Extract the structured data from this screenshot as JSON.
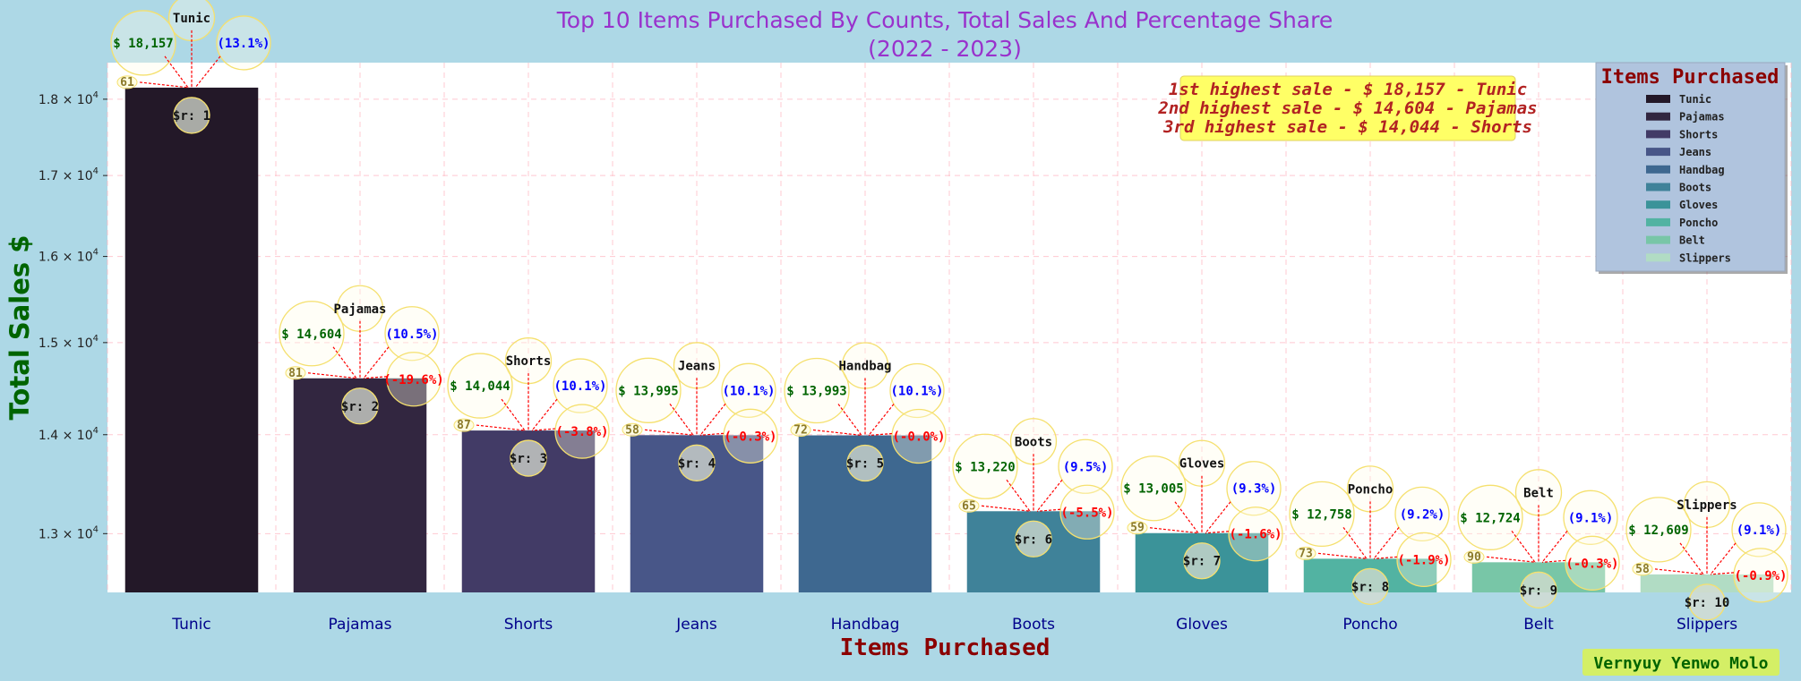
{
  "chart_data": {
    "type": "bar",
    "title_line1": "Top 10 Items Purchased By Counts, Total Sales And Percentage Share",
    "title_line2": "(2022 - 2023)",
    "xlabel": "Items Purchased",
    "ylabel": "Total Sales $",
    "y_scale": "log",
    "ylim": [
      12440,
      18500
    ],
    "yticks": [
      {
        "value": 13000,
        "base": "1.3 × 10",
        "exp": "4"
      },
      {
        "value": 14000,
        "base": "1.4 × 10",
        "exp": "4"
      },
      {
        "value": 15000,
        "base": "1.5 × 10",
        "exp": "4"
      },
      {
        "value": 16000,
        "base": "1.6 × 10",
        "exp": "4"
      },
      {
        "value": 17000,
        "base": "1.7 × 10",
        "exp": "4"
      },
      {
        "value": 18000,
        "base": "1.8 × 10",
        "exp": "4"
      }
    ],
    "grid": true,
    "legend_title": "Items Purchased",
    "legend_position": "top-right",
    "categories": [
      "Tunic",
      "Pajamas",
      "Shorts",
      "Jeans",
      "Handbag",
      "Boots",
      "Gloves",
      "Poncho",
      "Belt",
      "Slippers"
    ],
    "values": [
      18157,
      14604,
      14044,
      13995,
      13993,
      13220,
      13005,
      12758,
      12724,
      12609
    ],
    "colors": [
      "#231828",
      "#322640",
      "#423b66",
      "#485688",
      "#3e6890",
      "#3f8299",
      "#3b9399",
      "#52b3a2",
      "#78c6a7",
      "#b1dcc4"
    ],
    "labels": [
      {
        "sales": "$ 18,157",
        "pct": "(13.1%)",
        "change": "",
        "count": "61",
        "rank": "$r: 1"
      },
      {
        "sales": "$ 14,604",
        "pct": "(10.5%)",
        "change": "(-19.6%)",
        "count": "81",
        "rank": "$r: 2"
      },
      {
        "sales": "$ 14,044",
        "pct": "(10.1%)",
        "change": "(-3.8%)",
        "count": "87",
        "rank": "$r: 3"
      },
      {
        "sales": "$ 13,995",
        "pct": "(10.1%)",
        "change": "(-0.3%)",
        "count": "58",
        "rank": "$r: 4"
      },
      {
        "sales": "$ 13,993",
        "pct": "(10.1%)",
        "change": "(-0.0%)",
        "count": "72",
        "rank": "$r: 5"
      },
      {
        "sales": "$ 13,220",
        "pct": "(9.5%)",
        "change": "(-5.5%)",
        "count": "65",
        "rank": "$r: 6"
      },
      {
        "sales": "$ 13,005",
        "pct": "(9.3%)",
        "change": "(-1.6%)",
        "count": "59",
        "rank": "$r: 7"
      },
      {
        "sales": "$ 12,758",
        "pct": "(9.2%)",
        "change": "(-1.9%)",
        "count": "73",
        "rank": "$r: 8"
      },
      {
        "sales": "$ 12,724",
        "pct": "(9.1%)",
        "change": "(-0.3%)",
        "count": "90",
        "rank": "$r: 9"
      },
      {
        "sales": "$ 12,609",
        "pct": "(9.1%)",
        "change": "(-0.9%)",
        "count": "58",
        "rank": "$r: 10"
      }
    ],
    "highlights": [
      "1st highest sale - $ 18,157 - Tunic",
      "2nd highest sale - $ 14,604 - Pajamas",
      "3rd highest sale - $ 14,044 - Shorts"
    ],
    "signature": "Vernyuy Yenwo Molo",
    "background_color": "#add8e6",
    "plot_background": "#ffffff",
    "title_color": "#9932cc",
    "sales_label_color": "#006400",
    "pct_label_color": "#0000ff",
    "change_label_color": "#ff0000",
    "highlight_box_color": "#ffff66",
    "legend_box_color": "#b0c4de"
  }
}
